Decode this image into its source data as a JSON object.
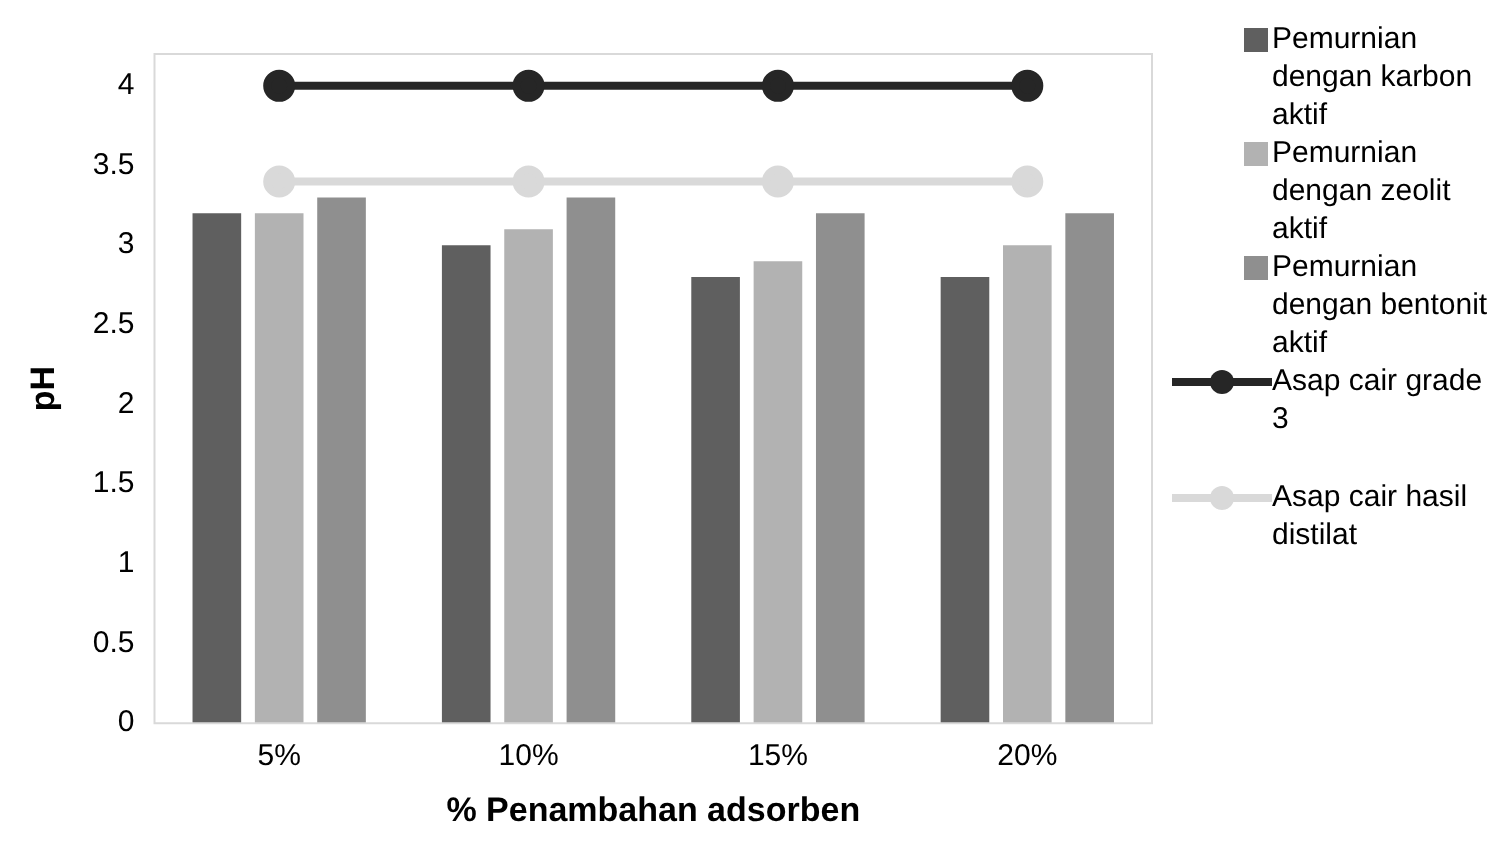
{
  "chart_data": {
    "type": "bar",
    "xlabel": "% Penambahan adsorben",
    "ylabel": "pH",
    "categories": [
      "5%",
      "10%",
      "15%",
      "20%"
    ],
    "series": [
      {
        "name": "Pemurnian dengan karbon aktif",
        "color": "#5f5f5f",
        "values": [
          3.2,
          3.0,
          2.8,
          2.8
        ]
      },
      {
        "name": "Pemurnian dengan zeolit aktif",
        "color": "#b2b2b2",
        "values": [
          3.2,
          3.1,
          2.9,
          3.0
        ]
      },
      {
        "name": "Pemurnian dengan bentonit aktif",
        "color": "#8f8f8f",
        "values": [
          3.3,
          3.3,
          3.2,
          3.2
        ]
      },
      {
        "name": "Asap cair grade 3",
        "color": "#262626",
        "type": "line",
        "marker": "circle",
        "values": [
          4,
          4,
          4,
          4
        ]
      },
      {
        "name": "Asap cair hasil distilat",
        "color": "#d9d9d9",
        "type": "line",
        "marker": "circle",
        "values": [
          3.4,
          3.4,
          3.4,
          3.4
        ]
      }
    ],
    "ylim": [
      0,
      4.2
    ],
    "yticks": [
      0,
      0.5,
      1,
      1.5,
      2,
      2.5,
      3,
      3.5,
      4
    ],
    "grid": false,
    "legend": "right"
  }
}
